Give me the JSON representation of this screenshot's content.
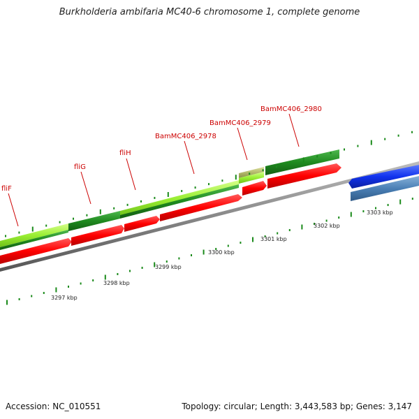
{
  "map": {
    "title": "Burkholderia ambifaria MC40-6 chromosome 1, complete genome",
    "accession": "Accession: NC_010551",
    "summary": "Topology: circular; Length: 3,443,583 bp; Genes: 3,147"
  },
  "gene_labels": [
    "fliF",
    "fliG",
    "fliH",
    "BamMC406_2978",
    "BamMC406_2979",
    "BamMC406_2980"
  ],
  "scale_labels": [
    "3297 kbp",
    "3298 kbp",
    "3299 kbp",
    "3300 kbp",
    "3301 kbp",
    "3302 kbp",
    "3303 kbp"
  ],
  "colors": {
    "cds": "#ff0000",
    "gene_dark": "#1f8a1f",
    "gene_light": "#99ee33",
    "gene_olive": "#b4ba6c",
    "blue_feature": "#1133ee",
    "steel_feature": "#4a7fb5",
    "backbone": "#888888",
    "tick": "#1a8a1a",
    "label": "#cc0000"
  }
}
